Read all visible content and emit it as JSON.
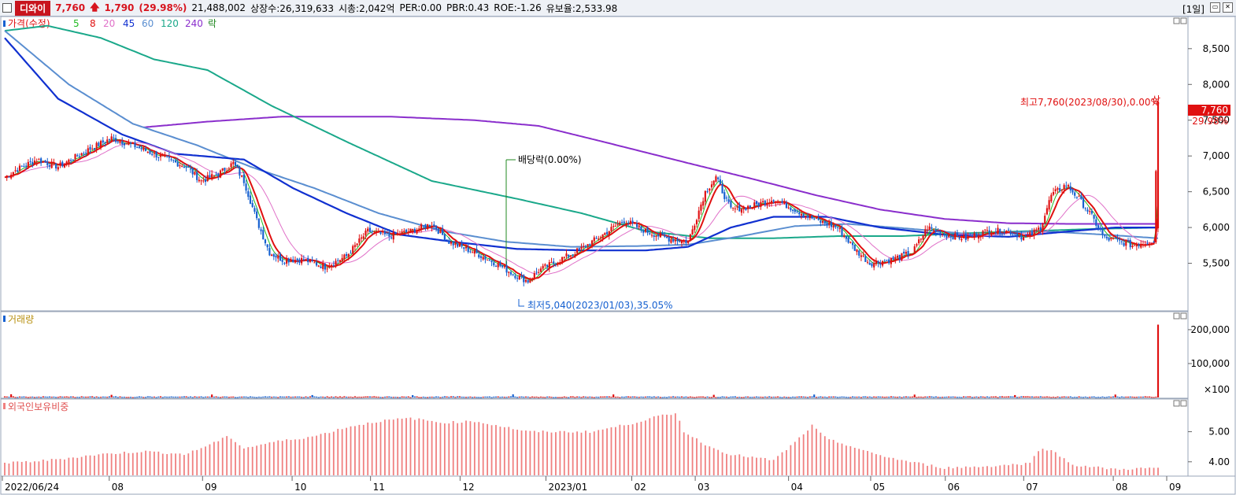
{
  "header": {
    "name": "디와이",
    "price": "7,760",
    "change_arrow": "🡅",
    "change": "1,790",
    "change_pct": "(29.98%)",
    "volume": "21,488,002",
    "listed_shares": "상장수:26,319,633",
    "market_cap": "시총:2,042억",
    "per": "PER:0.00",
    "pbr": "PBR:0.43",
    "roe": "ROE:-1.26",
    "retention": "유보율:2,533.98",
    "period": "[1일]"
  },
  "legend": {
    "price_label": "가격(수정)",
    "ma5": "5",
    "ma8": "8",
    "ma20": "20",
    "ma45": "45",
    "ma60": "60",
    "ma120": "120",
    "ma240": "240",
    "ex_label": "락"
  },
  "colors": {
    "up": "#e01010",
    "down": "#1560d0",
    "ma5": "#22bb22",
    "ma8": "#e01010",
    "ma20": "#e070c8",
    "ma45": "#1030d0",
    "ma60": "#5a8ed0",
    "ma120": "#1aa88a",
    "ma240": "#8a2ecc",
    "volume_label": "#b89010",
    "foreign_bar": "#f08080"
  },
  "annotations": {
    "high": "최고7,760(2023/08/30),0.00%",
    "high_tag": "상",
    "low": "최저5,040(2023/01/03),35.05%",
    "ex_dividend": "배당락(0.00%)",
    "price_tag": "7,760",
    "pct_tag": "29.98%"
  },
  "price_axis": {
    "ticks": [
      "8,500",
      "8,000",
      "7,500",
      "7,000",
      "6,500",
      "6,000",
      "5,500"
    ]
  },
  "volume_panel": {
    "title": "거래량",
    "ticks": [
      "200,000",
      "100,000",
      "×100"
    ]
  },
  "foreign_panel": {
    "title": "외국인보유비중",
    "ticks": [
      "5.00",
      "4.00"
    ]
  },
  "x_axis": {
    "labels": [
      "2022/06/24",
      "08",
      "09",
      "10",
      "11",
      "12",
      "2023/01",
      "02",
      "03",
      "04",
      "05",
      "06",
      "07",
      "08",
      "09"
    ]
  },
  "chart_data": {
    "type": "candlestick",
    "x_range": [
      "2022/06/24",
      "2023/08/30"
    ],
    "price_range": [
      5000,
      8850
    ],
    "price_anchors": [
      [
        0,
        6700
      ],
      [
        5,
        6800
      ],
      [
        15,
        6950
      ],
      [
        25,
        6850
      ],
      [
        40,
        7100
      ],
      [
        50,
        7250
      ],
      [
        60,
        7150
      ],
      [
        72,
        7000
      ],
      [
        85,
        6850
      ],
      [
        92,
        6650
      ],
      [
        100,
        6750
      ],
      [
        107,
        6900
      ],
      [
        112,
        6650
      ],
      [
        118,
        6100
      ],
      [
        124,
        5650
      ],
      [
        130,
        5550
      ],
      [
        140,
        5550
      ],
      [
        150,
        5450
      ],
      [
        160,
        5600
      ],
      [
        170,
        5950
      ],
      [
        180,
        5880
      ],
      [
        190,
        5950
      ],
      [
        200,
        6050
      ],
      [
        208,
        5800
      ],
      [
        220,
        5650
      ],
      [
        230,
        5500
      ],
      [
        238,
        5350
      ],
      [
        245,
        5250
      ],
      [
        250,
        5400
      ],
      [
        260,
        5550
      ],
      [
        270,
        5700
      ],
      [
        280,
        5900
      ],
      [
        290,
        6100
      ],
      [
        300,
        5950
      ],
      [
        310,
        5850
      ],
      [
        320,
        5800
      ],
      [
        328,
        6500
      ],
      [
        333,
        6700
      ],
      [
        340,
        6250
      ],
      [
        350,
        6300
      ],
      [
        360,
        6400
      ],
      [
        370,
        6250
      ],
      [
        380,
        6100
      ],
      [
        390,
        6000
      ],
      [
        398,
        5700
      ],
      [
        405,
        5500
      ],
      [
        415,
        5550
      ],
      [
        425,
        5650
      ],
      [
        432,
        6000
      ],
      [
        440,
        5900
      ],
      [
        450,
        5850
      ],
      [
        460,
        5950
      ],
      [
        470,
        5950
      ],
      [
        478,
        5850
      ],
      [
        485,
        6000
      ],
      [
        490,
        6450
      ],
      [
        497,
        6600
      ],
      [
        503,
        6400
      ],
      [
        508,
        6200
      ],
      [
        515,
        5850
      ],
      [
        520,
        5820
      ],
      [
        528,
        5750
      ],
      [
        535,
        5800
      ],
      [
        538,
        5820
      ],
      [
        540,
        7760
      ]
    ],
    "ma_series": {
      "ma45": [
        [
          0,
          8650
        ],
        [
          25,
          7800
        ],
        [
          55,
          7300
        ],
        [
          80,
          7030
        ],
        [
          112,
          6950
        ],
        [
          135,
          6550
        ],
        [
          160,
          6200
        ],
        [
          185,
          5900
        ],
        [
          210,
          5800
        ],
        [
          240,
          5700
        ],
        [
          270,
          5680
        ],
        [
          300,
          5680
        ],
        [
          320,
          5730
        ],
        [
          340,
          6000
        ],
        [
          360,
          6150
        ],
        [
          385,
          6150
        ],
        [
          410,
          6000
        ],
        [
          440,
          5900
        ],
        [
          470,
          5870
        ],
        [
          500,
          5950
        ],
        [
          520,
          6000
        ],
        [
          540,
          6000
        ]
      ],
      "ma60": [
        [
          0,
          8750
        ],
        [
          30,
          8000
        ],
        [
          60,
          7450
        ],
        [
          90,
          7150
        ],
        [
          115,
          6850
        ],
        [
          145,
          6550
        ],
        [
          175,
          6200
        ],
        [
          205,
          5950
        ],
        [
          235,
          5800
        ],
        [
          265,
          5730
        ],
        [
          295,
          5740
        ],
        [
          320,
          5760
        ],
        [
          345,
          5880
        ],
        [
          370,
          6020
        ],
        [
          395,
          6050
        ],
        [
          425,
          5980
        ],
        [
          455,
          5900
        ],
        [
          485,
          5950
        ],
        [
          515,
          5900
        ],
        [
          540,
          5850
        ]
      ],
      "ma120": [
        [
          0,
          8750
        ],
        [
          20,
          8820
        ],
        [
          45,
          8650
        ],
        [
          70,
          8350
        ],
        [
          95,
          8200
        ],
        [
          125,
          7700
        ],
        [
          160,
          7200
        ],
        [
          200,
          6650
        ],
        [
          240,
          6400
        ],
        [
          270,
          6200
        ],
        [
          300,
          5950
        ],
        [
          330,
          5850
        ],
        [
          360,
          5850
        ],
        [
          390,
          5880
        ],
        [
          420,
          5880
        ],
        [
          450,
          5920
        ],
        [
          480,
          5950
        ],
        [
          510,
          5980
        ],
        [
          540,
          6000
        ]
      ],
      "ma240": [
        [
          65,
          7400
        ],
        [
          95,
          7480
        ],
        [
          130,
          7550
        ],
        [
          180,
          7550
        ],
        [
          220,
          7500
        ],
        [
          250,
          7420
        ],
        [
          280,
          7200
        ],
        [
          320,
          6900
        ],
        [
          350,
          6680
        ],
        [
          380,
          6450
        ],
        [
          410,
          6250
        ],
        [
          440,
          6120
        ],
        [
          470,
          6060
        ],
        [
          500,
          6050
        ],
        [
          540,
          6050
        ]
      ]
    },
    "volume_range": [
      0,
      230000
    ],
    "volume_spike_day": 540,
    "volume_spike_value": 214880,
    "foreign_range": [
      3.55,
      5.8
    ],
    "foreign_anchors": [
      [
        0,
        3.95
      ],
      [
        20,
        4.05
      ],
      [
        45,
        4.25
      ],
      [
        65,
        4.35
      ],
      [
        85,
        4.25
      ],
      [
        105,
        4.85
      ],
      [
        112,
        4.45
      ],
      [
        125,
        4.65
      ],
      [
        145,
        4.85
      ],
      [
        160,
        5.15
      ],
      [
        175,
        5.35
      ],
      [
        190,
        5.45
      ],
      [
        205,
        5.3
      ],
      [
        220,
        5.35
      ],
      [
        235,
        5.15
      ],
      [
        245,
        5.0
      ],
      [
        255,
        5.0
      ],
      [
        275,
        5.0
      ],
      [
        295,
        5.3
      ],
      [
        305,
        5.5
      ],
      [
        315,
        5.6
      ],
      [
        318,
        5.0
      ],
      [
        330,
        4.5
      ],
      [
        340,
        4.25
      ],
      [
        360,
        4.05
      ],
      [
        370,
        4.65
      ],
      [
        378,
        5.2
      ],
      [
        385,
        4.75
      ],
      [
        395,
        4.55
      ],
      [
        405,
        4.3
      ],
      [
        420,
        4.05
      ],
      [
        440,
        3.8
      ],
      [
        460,
        3.85
      ],
      [
        480,
        3.95
      ],
      [
        485,
        4.5
      ],
      [
        492,
        4.3
      ],
      [
        500,
        3.9
      ],
      [
        520,
        3.75
      ],
      [
        540,
        3.8
      ]
    ]
  }
}
